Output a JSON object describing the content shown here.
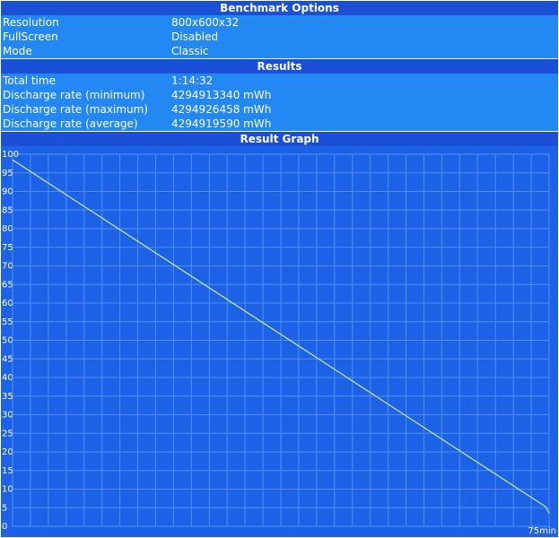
{
  "benchmark_options": {
    "title": "Benchmark Options",
    "rows": [
      [
        "Resolution",
        "800x600x32"
      ],
      [
        "FullScreen",
        "Disabled"
      ],
      [
        "Mode",
        "Classic"
      ]
    ]
  },
  "results": {
    "title": "Results",
    "rows": [
      [
        "Total time",
        "1:14:32"
      ],
      [
        "Discharge rate (minimum)",
        "4294913340 mWh"
      ],
      [
        "Discharge rate (maximum)",
        "4294926458 mWh"
      ],
      [
        "Discharge rate (average)",
        "4294919590 mWh"
      ]
    ]
  },
  "result_graph": {
    "title": "Result Graph"
  },
  "chart_data": {
    "type": "line",
    "color": "#c8f08c",
    "x": [
      0,
      74.5,
      75
    ],
    "values": [
      98.5,
      5.3,
      3.5
    ],
    "xlim": [
      0,
      75
    ],
    "xticks": [
      0,
      2.5,
      5,
      7.5,
      10,
      12.5,
      15,
      17.5,
      20,
      22.5,
      25,
      27.5,
      30,
      32.5,
      35,
      37.5,
      40,
      42.5,
      45,
      47.5,
      50,
      52.5,
      55,
      57.5,
      60,
      62.5,
      65,
      67.5,
      70,
      72.5,
      {
        "value": 75,
        "label": "75min"
      }
    ],
    "ylim": [
      0,
      100
    ],
    "yticks": [
      0,
      5,
      10,
      15,
      20,
      25,
      30,
      35,
      40,
      45,
      50,
      55,
      60,
      65,
      70,
      75,
      80,
      85,
      90,
      95,
      100
    ],
    "grid": true
  }
}
